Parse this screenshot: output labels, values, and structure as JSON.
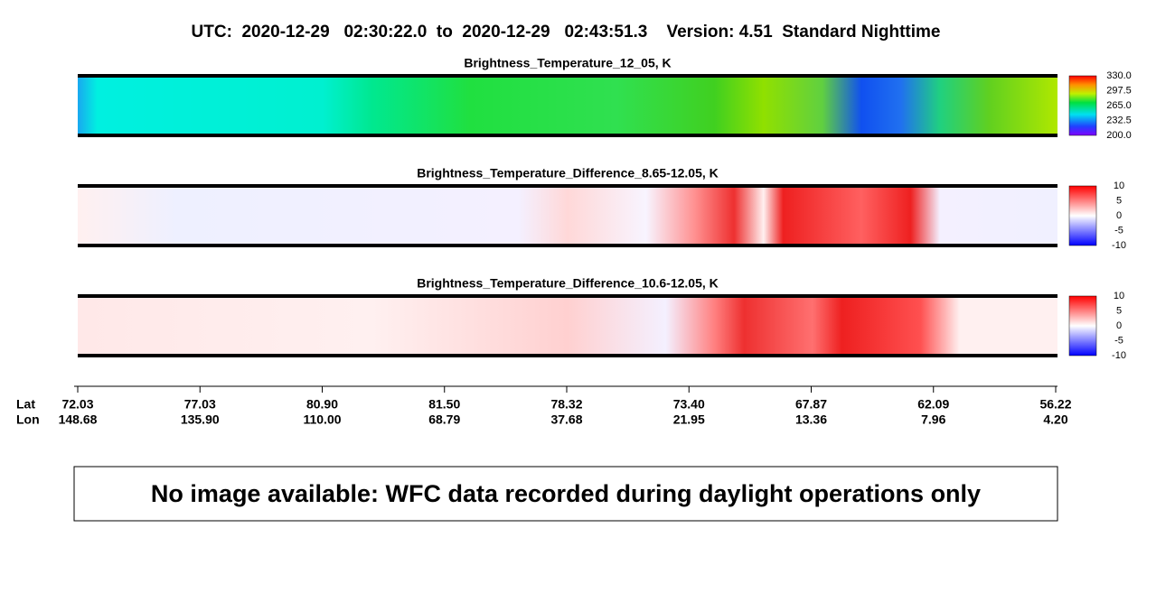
{
  "title": "UTC:  2020-12-29   02:30:22.0  to  2020-12-29   02:43:51.3    Version: 4.51  Standard Nighttime",
  "panels": [
    {
      "title": "Brightness_Temperature_12_05, K",
      "colorbar_ticks": [
        "330.0",
        "297.5",
        "265.0",
        "232.5",
        "200.0"
      ]
    },
    {
      "title": "Brightness_Temperature_Difference_8.65-12.05, K",
      "colorbar_ticks": [
        "10",
        "5",
        "0",
        "-5",
        "-10"
      ]
    },
    {
      "title": "Brightness_Temperature_Difference_10.6-12.05, K",
      "colorbar_ticks": [
        "10",
        "5",
        "0",
        "-5",
        "-10"
      ]
    }
  ],
  "axis": {
    "lat_label": "Lat",
    "lon_label": "Lon",
    "lat": [
      "72.03",
      "77.03",
      "80.90",
      "81.50",
      "78.32",
      "73.40",
      "67.87",
      "62.09",
      "56.22"
    ],
    "lon": [
      "148.68",
      "135.90",
      "110.00",
      "68.79",
      "37.68",
      "21.95",
      "13.36",
      "7.96",
      "4.20"
    ]
  },
  "message": "No image available: WFC data recorded during daylight operations only"
}
